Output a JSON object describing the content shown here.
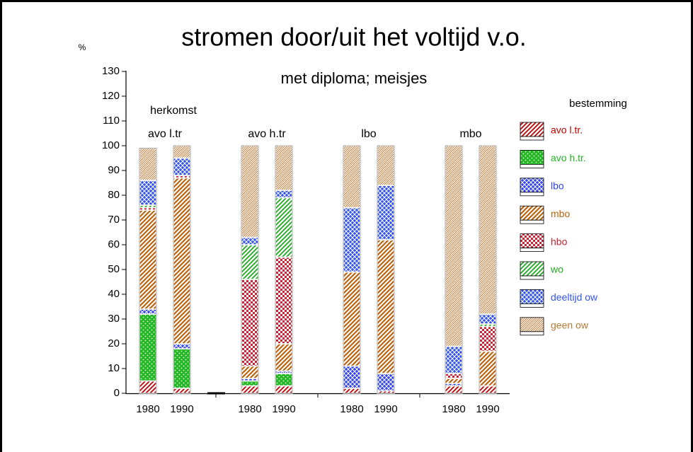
{
  "chart_data": {
    "type": "stacked_bar",
    "title": "stromen door/uit het voltijd v.o.",
    "subtitle": "met diploma; meisjes",
    "y_label": "%",
    "annotation": "herkomst",
    "legend_title": "bestemming",
    "groups": [
      "avo l.tr",
      "avo h.tr",
      "lbo",
      "mbo"
    ],
    "categories": [
      "1980",
      "1990",
      "1980",
      "1990",
      "1980",
      "1990",
      "1980",
      "1990"
    ],
    "series": [
      {
        "name": "avo l.tr.",
        "color": "#c00000",
        "values": [
          5,
          2,
          3,
          3,
          2,
          1,
          3,
          3
        ]
      },
      {
        "name": "avo h.tr.",
        "color": "#22b822",
        "values": [
          27,
          16,
          2,
          5,
          0,
          0,
          0,
          0
        ]
      },
      {
        "name": "lbo",
        "color": "#3344ee",
        "values": [
          2,
          2,
          1,
          1,
          9,
          7,
          1,
          0
        ]
      },
      {
        "name": "mbo",
        "color": "#b8640e",
        "values": [
          40,
          67,
          5,
          11,
          38,
          54,
          2,
          14
        ]
      },
      {
        "name": "hbo",
        "color": "#cc2233",
        "values": [
          1,
          1,
          35,
          35,
          0,
          0,
          2,
          10
        ]
      },
      {
        "name": "wo",
        "color": "#1faa1f",
        "values": [
          1,
          0,
          14,
          24,
          0,
          0,
          0,
          1
        ]
      },
      {
        "name": "deeltijd ow",
        "color": "#3355ee",
        "values": [
          10,
          7,
          3,
          3,
          26,
          22,
          11,
          4
        ]
      },
      {
        "name": "geen ow",
        "color": "#b87a34",
        "values": [
          13,
          5,
          37,
          18,
          25,
          16,
          81,
          68
        ]
      }
    ],
    "ylim": [
      0,
      130
    ],
    "yticks": [
      0,
      10,
      20,
      30,
      40,
      50,
      60,
      70,
      80,
      90,
      100,
      110,
      120,
      130
    ]
  }
}
